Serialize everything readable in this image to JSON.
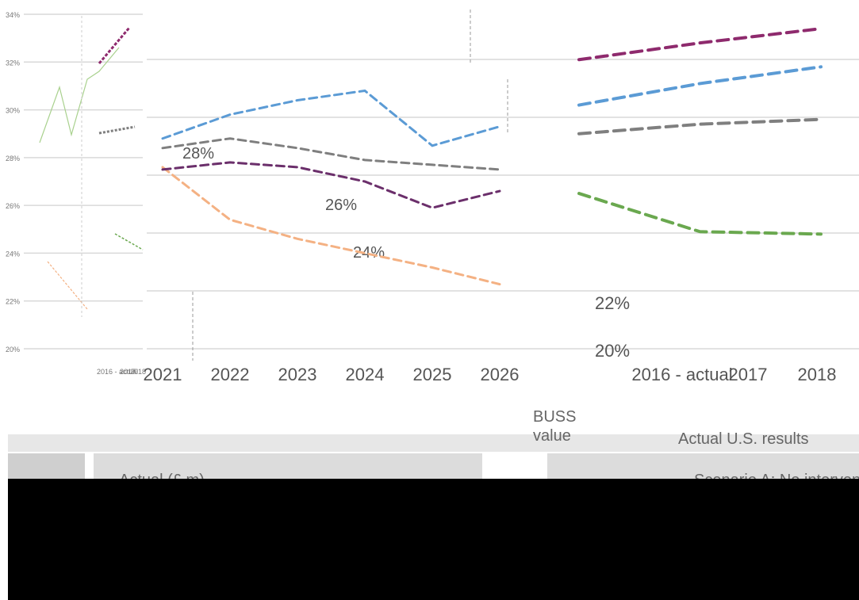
{
  "chart_data": [
    {
      "type": "line",
      "panel": "left-small-panel",
      "y_tick_labels": [
        "34%",
        "32%",
        "30%",
        "28%",
        "26%",
        "24%",
        "22%",
        "20%"
      ],
      "x_tick_labels": [
        "2016 - actual",
        "2017",
        "2018"
      ],
      "ylim": [
        20,
        34
      ]
    },
    {
      "type": "line",
      "panel": "main-panel",
      "y_tick_labels": [
        "28%",
        "26%",
        "24%",
        "22%",
        "20%"
      ],
      "x_tick_labels": [
        "2021",
        "2022",
        "2023",
        "2024",
        "2025",
        "2026"
      ],
      "ylim": [
        20,
        34
      ],
      "x": [
        2021,
        2022,
        2023,
        2024,
        2025,
        2026
      ],
      "series": [
        {
          "color": "#5b9bd5",
          "values": [
            28.8,
            29.8,
            30.4,
            30.8,
            28.5,
            29.3
          ]
        },
        {
          "color": "#f4b183",
          "values": [
            27.6,
            25.4,
            24.6,
            24.0,
            23.4,
            22.7
          ]
        },
        {
          "color": "#7f7f7f",
          "values": [
            28.4,
            28.8,
            28.4,
            27.9,
            27.7,
            27.5
          ]
        },
        {
          "color": "#6b2f6b",
          "values": [
            27.5,
            27.8,
            27.6,
            27.0,
            25.9,
            26.6
          ]
        }
      ]
    },
    {
      "type": "line",
      "panel": "right-panel",
      "y_tick_labels": [
        "22%",
        "20%"
      ],
      "x_tick_labels": [
        "2016 - actual",
        "2017",
        "2018"
      ],
      "ylim": [
        20,
        34
      ],
      "x": [
        "2016 - actual",
        "2017",
        "2018"
      ],
      "series": [
        {
          "color": "#8e2a6d",
          "values": [
            32.1,
            32.8,
            33.4
          ]
        },
        {
          "color": "#7f7f7f",
          "values": [
            29.0,
            29.4,
            29.6
          ]
        },
        {
          "color": "#6aa84f",
          "values": [
            26.5,
            24.9,
            24.8
          ]
        },
        {
          "color": "#5b9bd5",
          "values": [
            30.2,
            31.1,
            31.8
          ]
        }
      ]
    }
  ],
  "legend": {
    "label_main": "BUSS",
    "label_sub": "value",
    "left_entry": "Actual (£ m)",
    "mid_entry": "Actual U.S. results",
    "right_entry": "Scenario A: No intervention"
  },
  "colors": {
    "magenta": "#8e2a6d",
    "blue": "#5b9bd5",
    "dark_blue": "#1f5fa8",
    "orange": "#f4b183",
    "green": "#6aa84f",
    "gray": "#7f7f7f",
    "gridline": "#d9d9d9"
  }
}
